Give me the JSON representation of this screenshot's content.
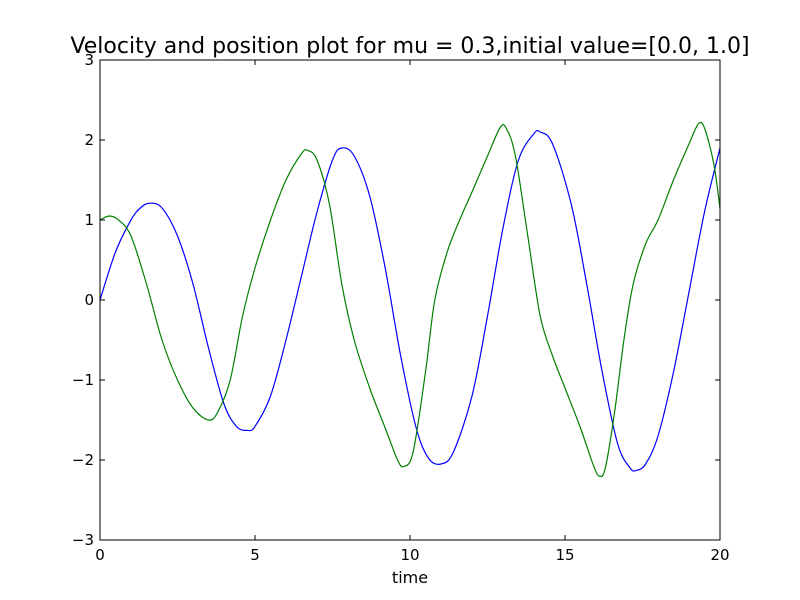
{
  "chart_data": {
    "type": "line",
    "title": "Velocity and position plot for mu = 0.3,initial value=[0.0, 1.0]",
    "xlabel": "time",
    "ylabel": "",
    "xlim": [
      0,
      20
    ],
    "ylim": [
      -3,
      3
    ],
    "x_ticks": [
      0,
      5,
      10,
      15,
      20
    ],
    "y_ticks": [
      -3,
      -2,
      -1,
      0,
      1,
      2,
      3
    ],
    "x_tick_labels": [
      "0",
      "5",
      "10",
      "15",
      "20"
    ],
    "y_tick_labels": [
      "−3",
      "−2",
      "−1",
      "0",
      "1",
      "2",
      "3"
    ],
    "grid": false,
    "legend": "none",
    "series": [
      {
        "color": "#0000ff",
        "points": [
          [
            0,
            0.0
          ],
          [
            0.5,
            0.6
          ],
          [
            1.0,
            1.0
          ],
          [
            1.3,
            1.15
          ],
          [
            1.6,
            1.21
          ],
          [
            2.0,
            1.15
          ],
          [
            2.5,
            0.8
          ],
          [
            3.0,
            0.2
          ],
          [
            3.5,
            -0.6
          ],
          [
            4.0,
            -1.3
          ],
          [
            4.4,
            -1.58
          ],
          [
            4.75,
            -1.63
          ],
          [
            5.0,
            -1.58
          ],
          [
            5.5,
            -1.2
          ],
          [
            6.0,
            -0.5
          ],
          [
            6.5,
            0.3
          ],
          [
            7.0,
            1.1
          ],
          [
            7.5,
            1.75
          ],
          [
            7.8,
            1.9
          ],
          [
            8.2,
            1.8
          ],
          [
            8.7,
            1.3
          ],
          [
            9.2,
            0.4
          ],
          [
            9.7,
            -0.7
          ],
          [
            10.2,
            -1.6
          ],
          [
            10.6,
            -1.98
          ],
          [
            11.0,
            -2.05
          ],
          [
            11.4,
            -1.9
          ],
          [
            12.0,
            -1.2
          ],
          [
            12.5,
            -0.2
          ],
          [
            13.0,
            0.9
          ],
          [
            13.5,
            1.75
          ],
          [
            14.0,
            2.08
          ],
          [
            14.2,
            2.1
          ],
          [
            14.6,
            1.95
          ],
          [
            15.2,
            1.2
          ],
          [
            15.7,
            0.2
          ],
          [
            16.2,
            -0.9
          ],
          [
            16.7,
            -1.8
          ],
          [
            17.1,
            -2.1
          ],
          [
            17.3,
            -2.13
          ],
          [
            17.6,
            -2.05
          ],
          [
            18.0,
            -1.7
          ],
          [
            18.5,
            -0.9
          ],
          [
            19.0,
            0.1
          ],
          [
            19.5,
            1.1
          ],
          [
            20.0,
            1.9
          ]
        ]
      },
      {
        "color": "#008000",
        "points": [
          [
            0,
            1.0
          ],
          [
            0.3,
            1.05
          ],
          [
            0.6,
            1.0
          ],
          [
            1.0,
            0.8
          ],
          [
            1.5,
            0.2
          ],
          [
            2.0,
            -0.5
          ],
          [
            2.5,
            -1.0
          ],
          [
            3.0,
            -1.35
          ],
          [
            3.5,
            -1.5
          ],
          [
            3.8,
            -1.4
          ],
          [
            4.2,
            -1.0
          ],
          [
            4.6,
            -0.2
          ],
          [
            5.0,
            0.4
          ],
          [
            5.5,
            1.0
          ],
          [
            6.0,
            1.5
          ],
          [
            6.5,
            1.83
          ],
          [
            6.7,
            1.87
          ],
          [
            7.0,
            1.75
          ],
          [
            7.4,
            1.2
          ],
          [
            7.8,
            0.2
          ],
          [
            8.2,
            -0.5
          ],
          [
            8.7,
            -1.1
          ],
          [
            9.2,
            -1.6
          ],
          [
            9.6,
            -2.0
          ],
          [
            9.8,
            -2.08
          ],
          [
            10.1,
            -1.9
          ],
          [
            10.5,
            -0.9
          ],
          [
            10.8,
            0.0
          ],
          [
            11.2,
            0.6
          ],
          [
            11.6,
            1.0
          ],
          [
            12.0,
            1.35
          ],
          [
            12.5,
            1.8
          ],
          [
            12.9,
            2.15
          ],
          [
            13.1,
            2.15
          ],
          [
            13.4,
            1.8
          ],
          [
            13.8,
            0.8
          ],
          [
            14.2,
            -0.2
          ],
          [
            14.6,
            -0.7
          ],
          [
            15.0,
            -1.1
          ],
          [
            15.5,
            -1.6
          ],
          [
            15.9,
            -2.05
          ],
          [
            16.1,
            -2.2
          ],
          [
            16.3,
            -2.1
          ],
          [
            16.6,
            -1.4
          ],
          [
            16.9,
            -0.5
          ],
          [
            17.2,
            0.2
          ],
          [
            17.6,
            0.7
          ],
          [
            18.0,
            1.0
          ],
          [
            18.5,
            1.5
          ],
          [
            19.0,
            1.95
          ],
          [
            19.3,
            2.2
          ],
          [
            19.5,
            2.15
          ],
          [
            19.8,
            1.7
          ],
          [
            20.0,
            1.15
          ]
        ]
      }
    ]
  }
}
